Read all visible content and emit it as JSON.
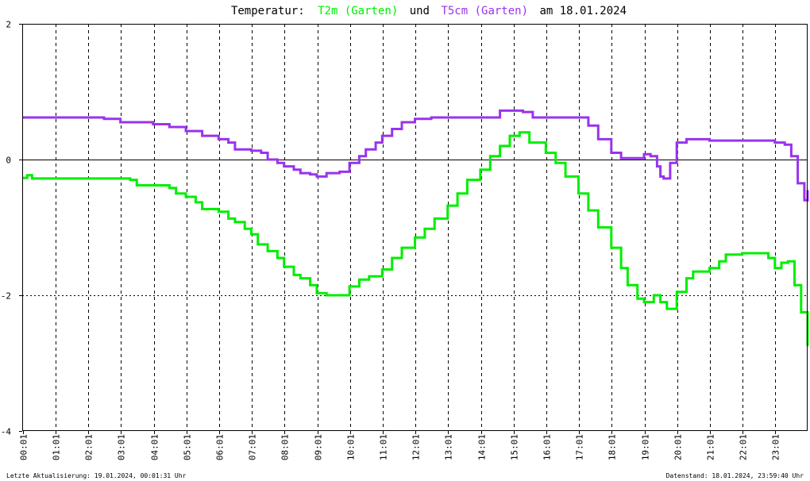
{
  "title": {
    "prefix": "Temperatur:",
    "series1": "T2m (Garten)",
    "connector": "und",
    "series2": "T5cm (Garten)",
    "suffix": "am 18.01.2024"
  },
  "footer": {
    "left": "Letzte Aktualisierung: 19.01.2024, 00:01:31 Uhr",
    "right": "Datenstand: 18.01.2024, 23:59:40 Uhr"
  },
  "chart_data": {
    "type": "line",
    "title": "Temperatur: T2m (Garten) und T5cm (Garten) am 18.01.2024",
    "xlabel": "",
    "ylabel": "",
    "xlim": [
      0,
      24
    ],
    "ylim": [
      -4,
      2
    ],
    "grid": true,
    "legend": "in title",
    "zero_line": true,
    "x_tick_labels": [
      "00:01",
      "01:01",
      "02:01",
      "03:01",
      "04:01",
      "05:01",
      "06:01",
      "07:01",
      "08:01",
      "09:01",
      "10:01",
      "11:01",
      "12:01",
      "13:01",
      "14:01",
      "15:01",
      "16:01",
      "17:01",
      "18:01",
      "19:01",
      "20:01",
      "21:01",
      "22:01",
      "23:01"
    ],
    "y_tick_labels": [
      "2",
      "0",
      "-2",
      "-4"
    ],
    "y_tick_values": [
      2,
      0,
      -2,
      -4
    ],
    "series": [
      {
        "name": "T2m (Garten)",
        "color": "#00ee00",
        "x": [
          0.0,
          0.15,
          0.3,
          0.5,
          1.0,
          1.7,
          2.0,
          2.5,
          3.0,
          3.3,
          3.5,
          4.0,
          4.5,
          4.7,
          5.0,
          5.3,
          5.5,
          6.0,
          6.3,
          6.5,
          6.8,
          7.0,
          7.2,
          7.5,
          7.8,
          8.0,
          8.3,
          8.5,
          8.8,
          9.0,
          9.3,
          9.7,
          10.0,
          10.3,
          10.6,
          11.0,
          11.3,
          11.6,
          12.0,
          12.3,
          12.6,
          13.0,
          13.3,
          13.6,
          14.0,
          14.3,
          14.6,
          14.9,
          15.2,
          15.5,
          16.0,
          16.3,
          16.6,
          17.0,
          17.3,
          17.6,
          18.0,
          18.3,
          18.5,
          18.8,
          19.0,
          19.3,
          19.5,
          19.7,
          19.8,
          20.0,
          20.3,
          20.5,
          20.8,
          21.0,
          21.3,
          21.5,
          22.0,
          22.5,
          22.8,
          23.0,
          23.2,
          23.4,
          23.6,
          23.8,
          24.0
        ],
        "values": [
          -0.27,
          -0.23,
          -0.28,
          -0.28,
          -0.28,
          -0.28,
          -0.28,
          -0.28,
          -0.28,
          -0.3,
          -0.38,
          -0.38,
          -0.42,
          -0.5,
          -0.55,
          -0.63,
          -0.73,
          -0.77,
          -0.87,
          -0.92,
          -1.02,
          -1.1,
          -1.25,
          -1.35,
          -1.45,
          -1.58,
          -1.7,
          -1.75,
          -1.85,
          -1.97,
          -2.0,
          -2.0,
          -1.87,
          -1.77,
          -1.72,
          -1.62,
          -1.45,
          -1.3,
          -1.15,
          -1.02,
          -0.87,
          -0.68,
          -0.5,
          -0.3,
          -0.15,
          0.05,
          0.2,
          0.35,
          0.4,
          0.25,
          0.1,
          -0.05,
          -0.25,
          -0.5,
          -0.75,
          -1.0,
          -1.3,
          -1.6,
          -1.85,
          -2.05,
          -2.1,
          -2.0,
          -2.1,
          -2.2,
          -2.2,
          -1.95,
          -1.75,
          -1.65,
          -1.65,
          -1.6,
          -1.5,
          -1.4,
          -1.38,
          -1.38,
          -1.45,
          -1.6,
          -1.52,
          -1.5,
          -1.85,
          -2.25,
          -2.75
        ]
      },
      {
        "name": "T5cm (Garten)",
        "color": "#9933ee",
        "x": [
          0.0,
          0.5,
          1.0,
          2.0,
          2.5,
          3.0,
          3.5,
          4.0,
          4.5,
          5.0,
          5.5,
          6.0,
          6.3,
          6.5,
          7.0,
          7.3,
          7.5,
          7.8,
          8.0,
          8.3,
          8.5,
          8.8,
          9.0,
          9.3,
          9.7,
          10.0,
          10.3,
          10.5,
          10.8,
          11.0,
          11.3,
          11.6,
          12.0,
          12.5,
          13.0,
          13.5,
          14.0,
          14.3,
          14.6,
          15.0,
          15.3,
          15.6,
          16.0,
          16.5,
          17.0,
          17.3,
          17.6,
          18.0,
          18.3,
          18.5,
          18.8,
          19.0,
          19.2,
          19.4,
          19.5,
          19.6,
          19.8,
          20.0,
          20.3,
          20.6,
          21.0,
          21.5,
          22.0,
          22.5,
          23.0,
          23.3,
          23.5,
          23.7,
          23.9,
          24.0
        ],
        "values": [
          0.62,
          0.62,
          0.62,
          0.62,
          0.6,
          0.55,
          0.55,
          0.52,
          0.48,
          0.42,
          0.35,
          0.3,
          0.25,
          0.15,
          0.13,
          0.1,
          0.0,
          -0.05,
          -0.1,
          -0.15,
          -0.2,
          -0.22,
          -0.25,
          -0.2,
          -0.18,
          -0.05,
          0.05,
          0.15,
          0.25,
          0.35,
          0.45,
          0.55,
          0.6,
          0.62,
          0.62,
          0.62,
          0.62,
          0.62,
          0.72,
          0.72,
          0.7,
          0.62,
          0.62,
          0.62,
          0.62,
          0.5,
          0.3,
          0.1,
          0.02,
          0.02,
          0.02,
          0.08,
          0.05,
          -0.1,
          -0.25,
          -0.28,
          -0.05,
          0.25,
          0.3,
          0.3,
          0.28,
          0.28,
          0.28,
          0.28,
          0.25,
          0.22,
          0.05,
          -0.35,
          -0.6,
          -0.45
        ]
      }
    ]
  }
}
